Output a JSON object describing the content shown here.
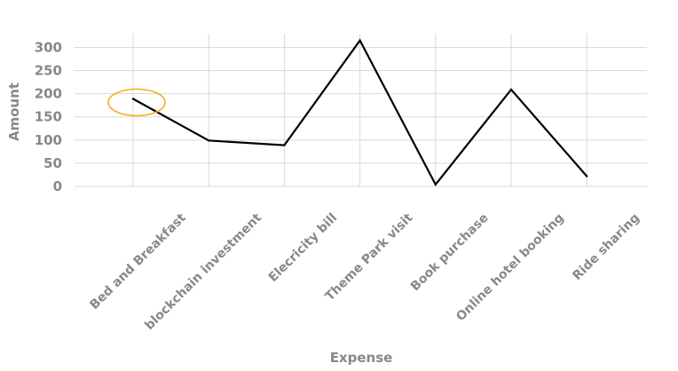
{
  "chart_data": {
    "type": "line",
    "xlabel": "Expense",
    "ylabel": "Amount",
    "categories": [
      "Bed and Breakfast",
      "blockchain investment",
      "Elecricity bill",
      "Theme Park visit",
      "Book purchase",
      "Online hotel booking",
      "Ride sharing"
    ],
    "series": [
      {
        "values": [
          189,
          99,
          89,
          315,
          4,
          209,
          22
        ]
      }
    ],
    "ylim": [
      0,
      330
    ],
    "yticks": [
      0,
      50,
      100,
      150,
      200,
      250,
      300
    ],
    "grid": true,
    "highlight": {
      "category": "Bed and Breakfast",
      "shape": "ellipse"
    },
    "colors": {
      "line": "#000000",
      "grid": "#d9d9d9",
      "text": "#888888",
      "highlight": "#f2b01e"
    }
  }
}
